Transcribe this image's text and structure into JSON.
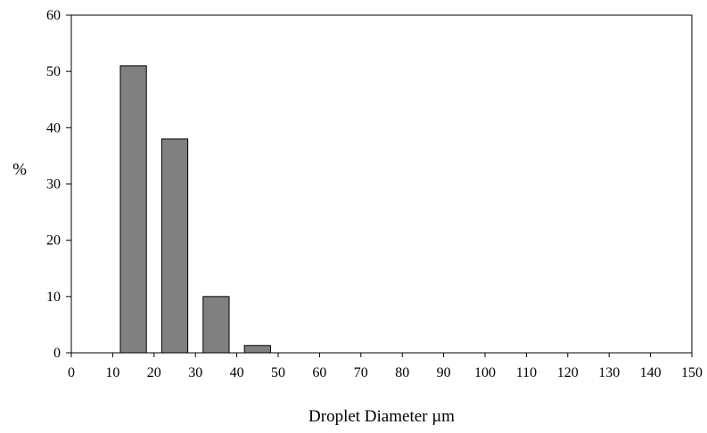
{
  "chart_data": {
    "type": "bar",
    "title": "",
    "xlabel": "Droplet Diameter µm",
    "ylabel": "%",
    "xlim": [
      0,
      150
    ],
    "ylim": [
      0,
      60
    ],
    "x_ticks": [
      0,
      10,
      20,
      30,
      40,
      50,
      60,
      70,
      80,
      90,
      100,
      110,
      120,
      130,
      140,
      150
    ],
    "y_ticks": [
      0,
      10,
      20,
      30,
      40,
      50,
      60
    ],
    "bins": [
      {
        "start": 10,
        "end": 20,
        "value": 51
      },
      {
        "start": 20,
        "end": 30,
        "value": 38
      },
      {
        "start": 30,
        "end": 40,
        "value": 10
      },
      {
        "start": 40,
        "end": 50,
        "value": 1.3
      }
    ],
    "bar_color": "#808080",
    "grid": false,
    "legend": "none"
  }
}
